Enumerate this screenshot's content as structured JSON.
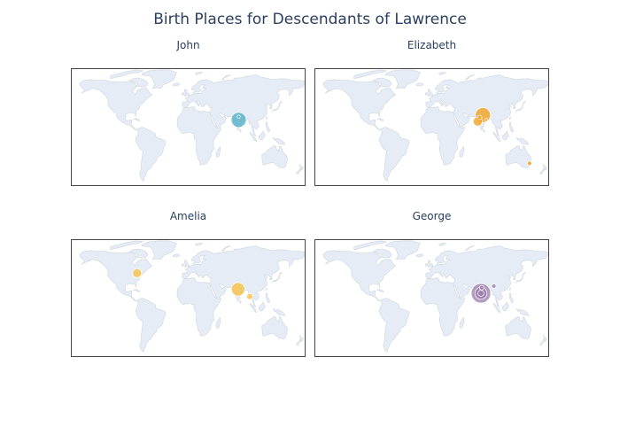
{
  "title": "Birth Places for Descendants of Lawrence",
  "colors": {
    "land": "#e5ecf6",
    "coast": "#d0d6de",
    "frame": "#444444"
  },
  "maps": [
    {
      "id": "john",
      "title": "John",
      "color": "#4bacc6",
      "points": [
        {
          "lon": 78,
          "lat": 21,
          "size": 10
        },
        {
          "lon": 78,
          "lat": 25,
          "size": 2
        }
      ]
    },
    {
      "id": "elizabeth",
      "title": "Elizabeth",
      "color": "#f39c12",
      "points": [
        {
          "lon": 79,
          "lat": 27,
          "size": 10
        },
        {
          "lon": 71,
          "lat": 19,
          "size": 6
        },
        {
          "lon": 74,
          "lat": 24,
          "size": 3
        },
        {
          "lon": 84,
          "lat": 21,
          "size": 2
        },
        {
          "lon": 151,
          "lat": -33,
          "size": 3
        }
      ]
    },
    {
      "id": "amelia",
      "title": "Amelia",
      "color": "#f7bf3b",
      "points": [
        {
          "lon": -79,
          "lat": 43,
          "size": 6
        },
        {
          "lon": 77,
          "lat": 23,
          "size": 9
        },
        {
          "lon": 95,
          "lat": 14,
          "size": 4
        }
      ]
    },
    {
      "id": "george",
      "title": "George",
      "color": "#9b7cab",
      "points": [
        {
          "lon": 76,
          "lat": 18,
          "size": 13
        },
        {
          "lon": 76,
          "lat": 18,
          "size": 8
        },
        {
          "lon": 76,
          "lat": 18,
          "size": 4
        },
        {
          "lon": 77,
          "lat": 25,
          "size": 3
        },
        {
          "lon": 96,
          "lat": 27,
          "size": 3
        }
      ]
    }
  ]
}
